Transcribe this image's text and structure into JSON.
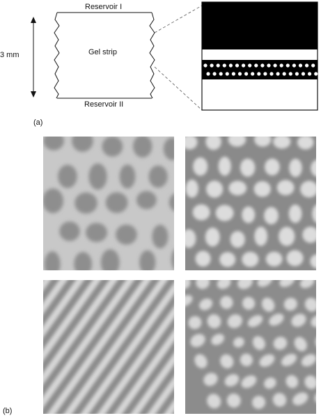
{
  "figure": {
    "panel_a_label": "(a)",
    "panel_b_label": "(b)",
    "diagram": {
      "reservoir_top": "Reservoir I",
      "reservoir_bottom": "Reservoir II",
      "gel_label": "Gel strip",
      "height_label": "3 mm"
    },
    "micrographs": [
      {
        "pattern": "dark-spots-on-light"
      },
      {
        "pattern": "light-spots-on-dark"
      },
      {
        "pattern": "diagonal-stripes"
      },
      {
        "pattern": "mixed-spots-stripes"
      }
    ]
  }
}
